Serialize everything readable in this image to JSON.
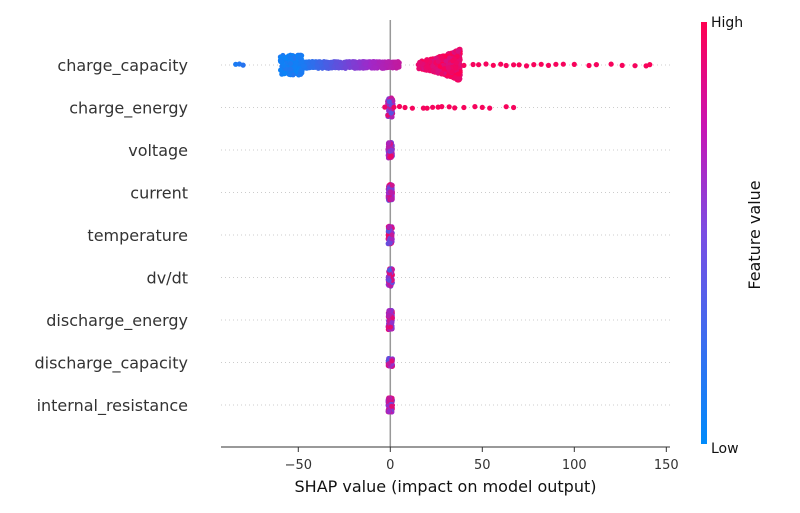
{
  "chart_data": {
    "type": "scatter",
    "subtype": "shap-beeswarm-summary",
    "xlabel": "SHAP value (impact on model output)",
    "xlim": [
      -92,
      152
    ],
    "x_ticks": [
      -50,
      0,
      50,
      100,
      150
    ],
    "x_tick_labels": [
      "−50",
      "0",
      "50",
      "100",
      "150"
    ],
    "zero_line": 0,
    "grid": "dotted horizontal row guides",
    "colorbar": {
      "label": "Feature value",
      "high_label": "High",
      "low_label": "Low",
      "low_color": "#008bfb",
      "high_color": "#ff0051",
      "position": "right"
    },
    "features": [
      {
        "name": "charge_capacity",
        "low_cluster": {
          "x_range": [
            -60,
            -48
          ],
          "spread": 1.0
        },
        "mid_band": {
          "x_range": [
            -48,
            5
          ],
          "spread": 0.35
        },
        "high_cluster": {
          "x_range": [
            15,
            38
          ],
          "spread": 1.0
        },
        "outliers": [
          {
            "x": -82,
            "v": 0.1
          },
          {
            "x": -80,
            "v": 0.12
          },
          {
            "x": -84,
            "v": 0.08
          },
          {
            "x": 40,
            "v": 0.95
          },
          {
            "x": 45,
            "v": 0.95
          },
          {
            "x": 48,
            "v": 0.96
          },
          {
            "x": 52,
            "v": 0.95
          },
          {
            "x": 56,
            "v": 0.97
          },
          {
            "x": 60,
            "v": 0.96
          },
          {
            "x": 63,
            "v": 0.95
          },
          {
            "x": 67,
            "v": 0.96
          },
          {
            "x": 70,
            "v": 0.97
          },
          {
            "x": 74,
            "v": 0.95
          },
          {
            "x": 78,
            "v": 0.96
          },
          {
            "x": 82,
            "v": 0.97
          },
          {
            "x": 86,
            "v": 0.95
          },
          {
            "x": 90,
            "v": 0.96
          },
          {
            "x": 94,
            "v": 0.95
          },
          {
            "x": 100,
            "v": 0.96
          },
          {
            "x": 108,
            "v": 0.97
          },
          {
            "x": 112,
            "v": 0.95
          },
          {
            "x": 120,
            "v": 0.96
          },
          {
            "x": 126,
            "v": 0.96
          },
          {
            "x": 133,
            "v": 0.95
          },
          {
            "x": 139,
            "v": 0.96
          },
          {
            "x": 141,
            "v": 0.97
          }
        ]
      },
      {
        "name": "charge_energy",
        "core": {
          "x_range": [
            -1.5,
            1.5
          ],
          "spread": 0.6
        },
        "outliers": [
          {
            "x": -3,
            "v": 0.9
          },
          {
            "x": 2,
            "v": 0.92
          },
          {
            "x": 5,
            "v": 0.95
          },
          {
            "x": 8,
            "v": 0.96
          },
          {
            "x": 12,
            "v": 0.95
          },
          {
            "x": 18,
            "v": 0.94
          },
          {
            "x": 20,
            "v": 0.96
          },
          {
            "x": 23,
            "v": 0.95
          },
          {
            "x": 26,
            "v": 0.97
          },
          {
            "x": 28,
            "v": 0.95
          },
          {
            "x": 32,
            "v": 0.96
          },
          {
            "x": 35,
            "v": 0.95
          },
          {
            "x": 40,
            "v": 0.96
          },
          {
            "x": 46,
            "v": 0.95
          },
          {
            "x": 50,
            "v": 0.96
          },
          {
            "x": 54,
            "v": 0.95
          },
          {
            "x": 63,
            "v": 0.96
          },
          {
            "x": 67,
            "v": 0.95
          }
        ]
      },
      {
        "name": "voltage",
        "core": {
          "x_range": [
            -1.2,
            1.2
          ],
          "spread": 0.5
        },
        "outliers": []
      },
      {
        "name": "current",
        "core": {
          "x_range": [
            -1.2,
            1.2
          ],
          "spread": 0.5
        },
        "outliers": []
      },
      {
        "name": "temperature",
        "core": {
          "x_range": [
            -1.2,
            1.2
          ],
          "spread": 0.55
        },
        "outliers": []
      },
      {
        "name": "dv/dt",
        "core": {
          "x_range": [
            -1.2,
            1.2
          ],
          "spread": 0.55
        },
        "outliers": []
      },
      {
        "name": "discharge_energy",
        "core": {
          "x_range": [
            -1.2,
            1.2
          ],
          "spread": 0.6
        },
        "outliers": []
      },
      {
        "name": "discharge_capacity",
        "core": {
          "x_range": [
            -1.2,
            1.2
          ],
          "spread": 0.25
        },
        "outliers": []
      },
      {
        "name": "internal_resistance",
        "core": {
          "x_range": [
            -1.2,
            1.2
          ],
          "spread": 0.45
        },
        "outliers": []
      }
    ]
  }
}
